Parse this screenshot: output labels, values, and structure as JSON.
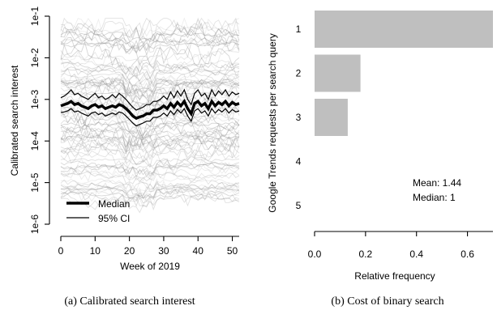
{
  "chart_data": [
    {
      "type": "line",
      "caption": "(a) Calibrated search interest",
      "xlabel": "Week of 2019",
      "ylabel": "Calibrated search interest",
      "xlim": [
        0,
        52
      ],
      "ylim": [
        1e-06,
        0.1
      ],
      "log_y": true,
      "x_ticks": [
        0,
        10,
        20,
        30,
        40,
        50
      ],
      "x_tick_labels": [
        "0",
        "10",
        "20",
        "30",
        "40",
        "50"
      ],
      "y_ticks": [
        1e-06,
        1e-05,
        0.0001,
        0.001,
        0.01,
        0.1
      ],
      "y_tick_labels": [
        "1e-6",
        "1e-5",
        "1e-4",
        "1e-3",
        "1e-2",
        "1e-1"
      ],
      "background_series_color": "#7f7f7f",
      "legend": {
        "placement": "bottom-left",
        "entries": [
          "Median",
          "95% CI"
        ]
      },
      "median": {
        "name": "Median",
        "y": [
          0.0007,
          0.00075,
          0.0008,
          0.0009,
          0.00075,
          0.0008,
          0.0007,
          0.00065,
          0.0006,
          0.0007,
          0.00075,
          0.00065,
          0.0007,
          0.0006,
          0.00065,
          0.0007,
          0.00065,
          0.00075,
          0.0007,
          0.0006,
          0.0005,
          0.0004,
          0.00035,
          0.00038,
          0.0004,
          0.00045,
          0.00045,
          0.00055,
          0.00055,
          0.0006,
          0.0007,
          0.0006,
          0.0008,
          0.00065,
          0.00085,
          0.0007,
          0.0009,
          0.0006,
          0.00045,
          0.0008,
          0.0009,
          0.0007,
          0.0008,
          0.0006,
          0.0009,
          0.0007,
          0.00085,
          0.00075,
          0.0009,
          0.0007,
          0.00085,
          0.00075,
          0.0008
        ]
      },
      "ci": {
        "name": "95% CI",
        "upper": [
          0.0011,
          0.0012,
          0.0014,
          0.0017,
          0.0013,
          0.0014,
          0.0012,
          0.0011,
          0.001,
          0.0012,
          0.0014,
          0.0011,
          0.0012,
          0.001,
          0.0011,
          0.0013,
          0.0011,
          0.0014,
          0.0012,
          0.001,
          0.0008,
          0.00065,
          0.00055,
          0.0006,
          0.00065,
          0.00075,
          0.00075,
          0.0009,
          0.0009,
          0.001,
          0.0012,
          0.001,
          0.0015,
          0.0011,
          0.0016,
          0.0012,
          0.0017,
          0.001,
          0.00075,
          0.0014,
          0.0017,
          0.0012,
          0.0014,
          0.001,
          0.0017,
          0.0012,
          0.0016,
          0.0013,
          0.0017,
          0.0012,
          0.0015,
          0.0013,
          0.0014
        ],
        "lower": [
          0.00048,
          0.0005,
          0.00053,
          0.0006,
          0.0005,
          0.00053,
          0.00047,
          0.00043,
          0.0004,
          0.00047,
          0.0005,
          0.00043,
          0.00047,
          0.0004,
          0.00043,
          0.00047,
          0.00043,
          0.0005,
          0.00047,
          0.0004,
          0.00033,
          0.00027,
          0.00023,
          0.00025,
          0.00027,
          0.0003,
          0.0003,
          0.00037,
          0.00037,
          0.0004,
          0.00047,
          0.0004,
          0.00053,
          0.00043,
          0.00057,
          0.00047,
          0.0006,
          0.0004,
          0.0003,
          0.00053,
          0.0006,
          0.00047,
          0.00053,
          0.0004,
          0.0006,
          0.00047,
          0.00057,
          0.0005,
          0.0006,
          0.00047,
          0.00057,
          0.0005,
          0.00053
        ]
      }
    },
    {
      "type": "bar",
      "orientation": "horizontal",
      "caption": "(b) Cost of binary search",
      "xlabel": "Relative frequency",
      "ylabel": "Google Trends requests per search query",
      "categories": [
        "1",
        "2",
        "3",
        "4",
        "5"
      ],
      "values": [
        0.7,
        0.18,
        0.13,
        0.0,
        0.0
      ],
      "xlim": [
        0,
        0.7
      ],
      "x_ticks": [
        0.0,
        0.2,
        0.4,
        0.6
      ],
      "x_tick_labels": [
        "0.0",
        "0.2",
        "0.4",
        "0.6"
      ],
      "bar_color": "#bfbfbf",
      "mean_label": "Mean: 1.44",
      "median_label": "Median: 1"
    }
  ]
}
